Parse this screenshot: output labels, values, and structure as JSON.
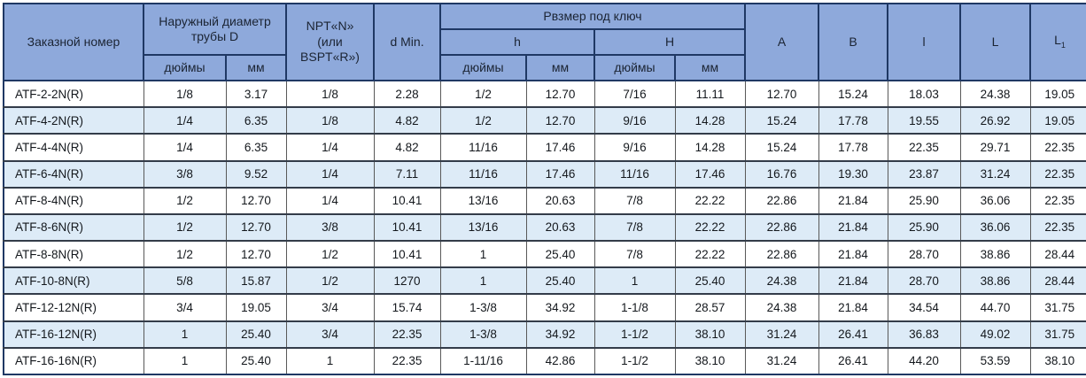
{
  "table": {
    "header": {
      "order_number": "Заказной номер",
      "outer_diameter": "Наружный диаметр трубы D",
      "npt_line1": "NPT«N»",
      "npt_line2": "(или",
      "npt_line3": "BSPT«R»)",
      "d_min": "d Min.",
      "wrench_size": "Рвзмер под ключ",
      "h_lower": "h",
      "h_upper": "H",
      "inches_d": "дюймы",
      "mm_d": "мм",
      "inches_h": "дюймы",
      "mm_h": "мм",
      "inches_hh": "дюймы",
      "mm_hh": "мм",
      "col_a": "A",
      "col_b": "B",
      "col_l_small": "l",
      "col_l_big": "L",
      "col_l1_base": "L",
      "col_l1_sub": "1"
    },
    "columns_order": [
      "order_number",
      "D_inches",
      "D_mm",
      "NPT",
      "d_min",
      "h_inches",
      "h_mm",
      "H_inches",
      "H_mm",
      "A",
      "B",
      "l",
      "L",
      "L1"
    ],
    "rows": [
      [
        "ATF-2-2N(R)",
        "1/8",
        "3.17",
        "1/8",
        "2.28",
        "1/2",
        "12.70",
        "7/16",
        "11.11",
        "12.70",
        "15.24",
        "18.03",
        "24.38",
        "19.05"
      ],
      [
        "ATF-4-2N(R)",
        "1/4",
        "6.35",
        "1/8",
        "4.82",
        "1/2",
        "12.70",
        "9/16",
        "14.28",
        "15.24",
        "17.78",
        "19.55",
        "26.92",
        "19.05"
      ],
      [
        "ATF-4-4N(R)",
        "1/4",
        "6.35",
        "1/4",
        "4.82",
        "11/16",
        "17.46",
        "9/16",
        "14.28",
        "15.24",
        "17.78",
        "22.35",
        "29.71",
        "22.35"
      ],
      [
        "ATF-6-4N(R)",
        "3/8",
        "9.52",
        "1/4",
        "7.11",
        "11/16",
        "17.46",
        "11/16",
        "17.46",
        "16.76",
        "19.30",
        "23.87",
        "31.24",
        "22.35"
      ],
      [
        "ATF-8-4N(R)",
        "1/2",
        "12.70",
        "1/4",
        "10.41",
        "13/16",
        "20.63",
        "7/8",
        "22.22",
        "22.86",
        "21.84",
        "25.90",
        "36.06",
        "22.35"
      ],
      [
        "ATF-8-6N(R)",
        "1/2",
        "12.70",
        "3/8",
        "10.41",
        "13/16",
        "20.63",
        "7/8",
        "22.22",
        "22.86",
        "21.84",
        "25.90",
        "36.06",
        "22.35"
      ],
      [
        "ATF-8-8N(R)",
        "1/2",
        "12.70",
        "1/2",
        "10.41",
        "1",
        "25.40",
        "7/8",
        "22.22",
        "22.86",
        "21.84",
        "28.70",
        "38.86",
        "28.44"
      ],
      [
        "ATF-10-8N(R)",
        "5/8",
        "15.87",
        "1/2",
        "1270",
        "1",
        "25.40",
        "1",
        "25.40",
        "24.38",
        "21.84",
        "28.70",
        "38.86",
        "28.44"
      ],
      [
        "ATF-12-12N(R)",
        "3/4",
        "19.05",
        "3/4",
        "15.74",
        "1-3/8",
        "34.92",
        "1-1/8",
        "28.57",
        "24.38",
        "21.84",
        "34.54",
        "44.70",
        "31.75"
      ],
      [
        "ATF-16-12N(R)",
        "1",
        "25.40",
        "3/4",
        "22.35",
        "1-3/8",
        "34.92",
        "1-1/2",
        "38.10",
        "31.24",
        "26.41",
        "36.83",
        "49.02",
        "31.75"
      ],
      [
        "ATF-16-16N(R)",
        "1",
        "25.40",
        "1",
        "22.35",
        "1-11/16",
        "42.86",
        "1-1/2",
        "38.10",
        "31.24",
        "26.41",
        "44.20",
        "53.59",
        "38.10"
      ]
    ],
    "colors": {
      "header_bg": "#8EA9DB",
      "row_alt_bg": "#DDEBF7",
      "row_bg": "#FFFFFF",
      "border_dark": "#1F3864",
      "border_gray": "#595959",
      "text": "#14181d"
    }
  }
}
